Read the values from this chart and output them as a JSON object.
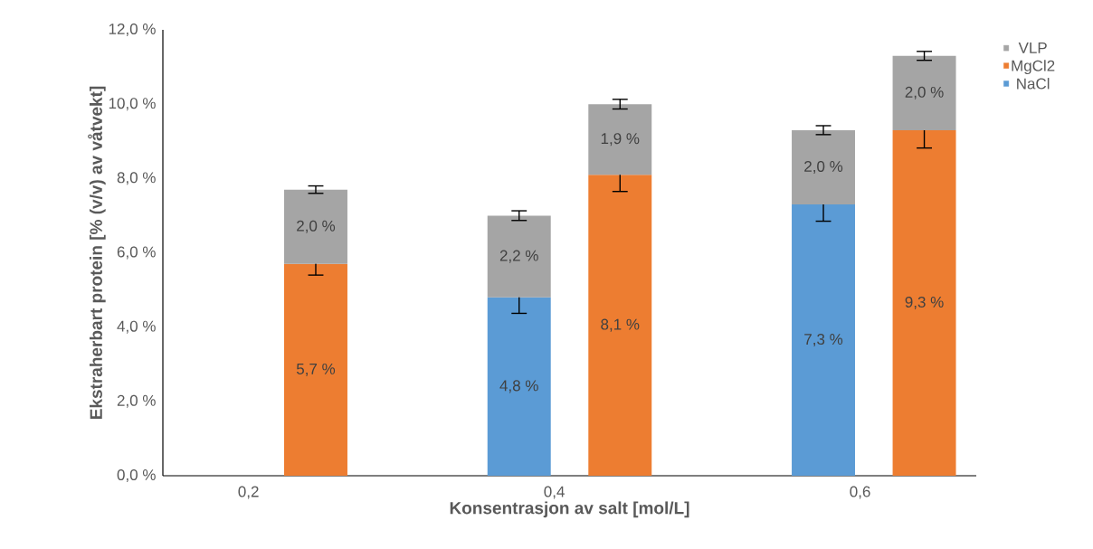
{
  "chart_data": {
    "type": "bar",
    "stacked": true,
    "xlabel": "Konsentrasjon av salt [mol/L]",
    "ylabel": "Ekstraherbart protein [% (v/v) av våtvekt]",
    "x": [
      0.244,
      0.377,
      0.443,
      0.576,
      0.642
    ],
    "xlim": [
      0.144,
      0.676
    ],
    "xticks": [
      {
        "value": 0.2,
        "label": "0,2"
      },
      {
        "value": 0.4,
        "label": "0,4"
      },
      {
        "value": 0.6,
        "label": "0,6"
      }
    ],
    "ylim": [
      0,
      12
    ],
    "yticks": [
      {
        "value": 0,
        "label": "0,0 %"
      },
      {
        "value": 2,
        "label": "2,0 %"
      },
      {
        "value": 4,
        "label": "4,0 %"
      },
      {
        "value": 6,
        "label": "6,0 %"
      },
      {
        "value": 8,
        "label": "8,0 %"
      },
      {
        "value": 10,
        "label": "10,0 %"
      },
      {
        "value": 12,
        "label": "12,0 %"
      }
    ],
    "legend": "right",
    "series": [
      {
        "name": "NaCl",
        "color": "#5b9bd5",
        "values": [
          null,
          4.8,
          null,
          7.3,
          null
        ],
        "errors": [
          null,
          0.43,
          null,
          0.45,
          null
        ],
        "value_labels": [
          null,
          "4,8 %",
          null,
          "7,3 %",
          null
        ]
      },
      {
        "name": "MgCl2",
        "color": "#ed7d31",
        "values": [
          5.7,
          null,
          8.1,
          null,
          9.3
        ],
        "errors": [
          0.3,
          null,
          0.45,
          null,
          0.48
        ],
        "value_labels": [
          "5,7 %",
          null,
          "8,1 %",
          null,
          "9,3 %"
        ]
      },
      {
        "name": "VLP",
        "color": "#a5a5a5",
        "values": [
          2.0,
          2.2,
          1.9,
          2.0,
          2.0
        ],
        "errors": [
          0.1,
          0.13,
          0.13,
          0.12,
          0.12
        ],
        "value_labels": [
          "2,0 %",
          "2,2 %",
          "1,9 %",
          "2,0 %",
          "2,0 %"
        ]
      }
    ]
  }
}
